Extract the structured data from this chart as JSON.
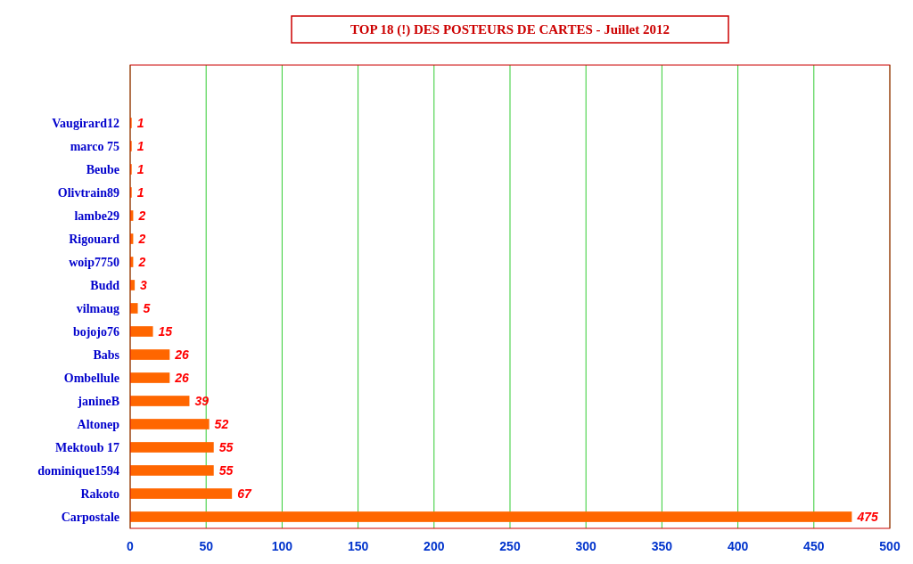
{
  "chart_data": {
    "type": "bar",
    "orientation": "horizontal",
    "title": "TOP 18 (!) DES POSTEURS DE CARTES - Juillet 2012",
    "categories": [
      "Vaugirard12",
      "marco 75",
      "Beube",
      "Olivtrain89",
      "lambe29",
      "Rigouard",
      "woip7750",
      "Budd",
      "vilmaug",
      "bojojo76",
      "Babs",
      "Ombellule",
      "janineB",
      "Altonep",
      "Mektoub 17",
      "dominique1594",
      "Rakoto",
      "Carpostale"
    ],
    "values": [
      1,
      1,
      1,
      1,
      2,
      2,
      2,
      3,
      5,
      15,
      26,
      26,
      39,
      52,
      55,
      55,
      67,
      475
    ],
    "color": "#ff6600",
    "xlim": [
      0,
      500
    ],
    "xticks": [
      0,
      50,
      100,
      150,
      200,
      250,
      300,
      350,
      400,
      450,
      500
    ],
    "grid": "x",
    "data_labels": true
  }
}
